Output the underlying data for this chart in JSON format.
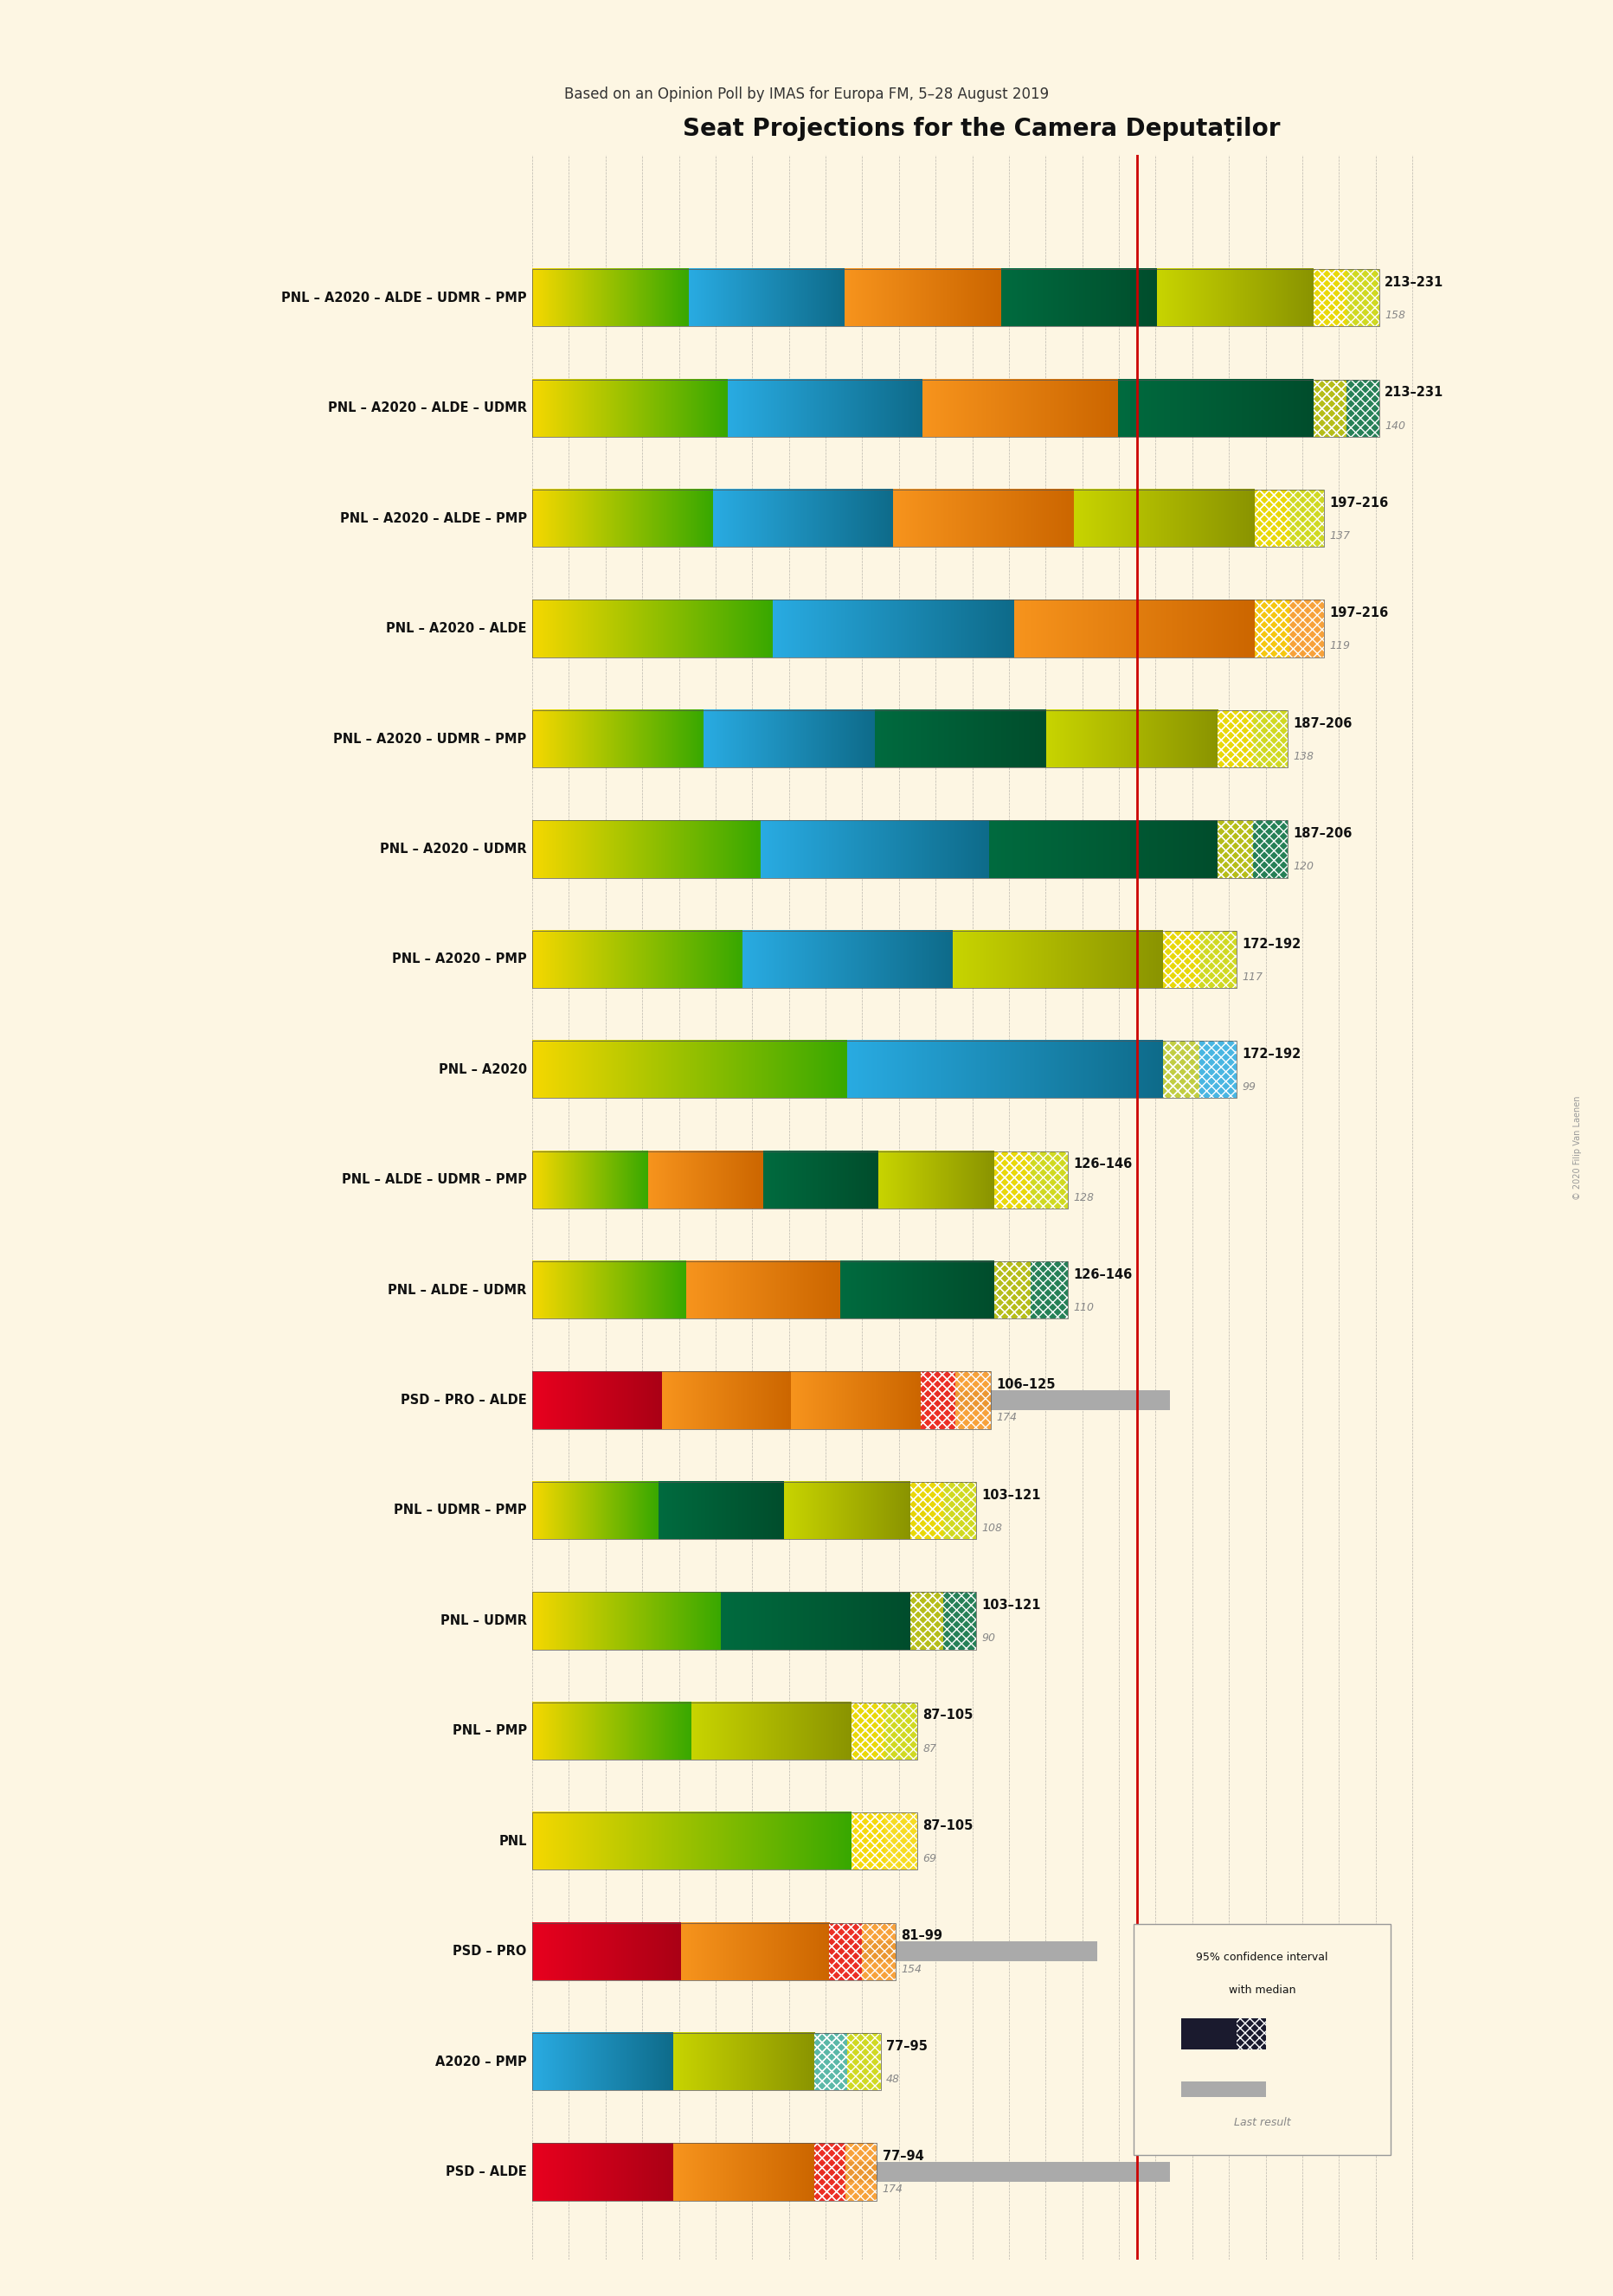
{
  "title": "Seat Projections for the Camera Deputaților",
  "subtitle": "Based on an Opinion Poll by IMAS for Europa FM, 5–28 August 2019",
  "background_color": "#fdf6e3",
  "coalitions": [
    {
      "label": "PNL – A2020 – ALDE – UDMR – PMP",
      "underline": true,
      "ci_low": 213,
      "ci_high": 231,
      "last": 158,
      "parties": [
        "PNL",
        "A2020",
        "ALDE",
        "UDMR",
        "PMP"
      ]
    },
    {
      "label": "PNL – A2020 – ALDE – UDMR",
      "underline": false,
      "ci_low": 213,
      "ci_high": 231,
      "last": 140,
      "parties": [
        "PNL",
        "A2020",
        "ALDE",
        "UDMR"
      ]
    },
    {
      "label": "PNL – A2020 – ALDE – PMP",
      "underline": false,
      "ci_low": 197,
      "ci_high": 216,
      "last": 137,
      "parties": [
        "PNL",
        "A2020",
        "ALDE",
        "PMP"
      ]
    },
    {
      "label": "PNL – A2020 – ALDE",
      "underline": false,
      "ci_low": 197,
      "ci_high": 216,
      "last": 119,
      "parties": [
        "PNL",
        "A2020",
        "ALDE"
      ]
    },
    {
      "label": "PNL – A2020 – UDMR – PMP",
      "underline": false,
      "ci_low": 187,
      "ci_high": 206,
      "last": 138,
      "parties": [
        "PNL",
        "A2020",
        "UDMR",
        "PMP"
      ]
    },
    {
      "label": "PNL – A2020 – UDMR",
      "underline": false,
      "ci_low": 187,
      "ci_high": 206,
      "last": 120,
      "parties": [
        "PNL",
        "A2020",
        "UDMR"
      ]
    },
    {
      "label": "PNL – A2020 – PMP",
      "underline": false,
      "ci_low": 172,
      "ci_high": 192,
      "last": 117,
      "parties": [
        "PNL",
        "A2020",
        "PMP"
      ]
    },
    {
      "label": "PNL – A2020",
      "underline": false,
      "ci_low": 172,
      "ci_high": 192,
      "last": 99,
      "parties": [
        "PNL",
        "A2020"
      ]
    },
    {
      "label": "PNL – ALDE – UDMR – PMP",
      "underline": false,
      "ci_low": 126,
      "ci_high": 146,
      "last": 128,
      "parties": [
        "PNL",
        "ALDE",
        "UDMR",
        "PMP"
      ]
    },
    {
      "label": "PNL – ALDE – UDMR",
      "underline": false,
      "ci_low": 126,
      "ci_high": 146,
      "last": 110,
      "parties": [
        "PNL",
        "ALDE",
        "UDMR"
      ]
    },
    {
      "label": "PSD – PRO – ALDE",
      "underline": false,
      "ci_low": 106,
      "ci_high": 125,
      "last": 174,
      "parties": [
        "PSD",
        "PRO",
        "ALDE"
      ]
    },
    {
      "label": "PNL – UDMR – PMP",
      "underline": false,
      "ci_low": 103,
      "ci_high": 121,
      "last": 108,
      "parties": [
        "PNL",
        "UDMR",
        "PMP"
      ]
    },
    {
      "label": "PNL – UDMR",
      "underline": false,
      "ci_low": 103,
      "ci_high": 121,
      "last": 90,
      "parties": [
        "PNL",
        "UDMR"
      ]
    },
    {
      "label": "PNL – PMP",
      "underline": false,
      "ci_low": 87,
      "ci_high": 105,
      "last": 87,
      "parties": [
        "PNL",
        "PMP"
      ]
    },
    {
      "label": "PNL",
      "underline": true,
      "ci_low": 87,
      "ci_high": 105,
      "last": 69,
      "parties": [
        "PNL"
      ]
    },
    {
      "label": "PSD – PRO",
      "underline": false,
      "ci_low": 81,
      "ci_high": 99,
      "last": 154,
      "parties": [
        "PSD",
        "PRO"
      ]
    },
    {
      "label": "A2020 – PMP",
      "underline": false,
      "ci_low": 77,
      "ci_high": 95,
      "last": 48,
      "parties": [
        "A2020",
        "PMP"
      ]
    },
    {
      "label": "PSD – ALDE",
      "underline": false,
      "ci_low": 77,
      "ci_high": 94,
      "last": 174,
      "parties": [
        "PSD",
        "ALDE"
      ]
    }
  ],
  "party_solid_colors": {
    "PNL": "#f5d800",
    "A2020": "#29abe2",
    "ALDE": "#f7941d",
    "UDMR": "#006b3f",
    "PMP": "#c8d400",
    "PSD": "#e8001e",
    "PRO": "#f7941d"
  },
  "party_dark_colors": {
    "PNL": "#38a800",
    "A2020": "#0e6b8a",
    "ALDE": "#cc6600",
    "UDMR": "#004d2c",
    "PMP": "#8a9400",
    "PSD": "#aa0015",
    "PRO": "#cc6600"
  },
  "majority_line": 165,
  "xmax": 245,
  "red_line_color": "#cc0000",
  "last_result_color": "#aaaaaa",
  "ci_label_color": "#111111",
  "last_label_color": "#888888",
  "copyright_text": "© 2020 Filip Van Laenen"
}
